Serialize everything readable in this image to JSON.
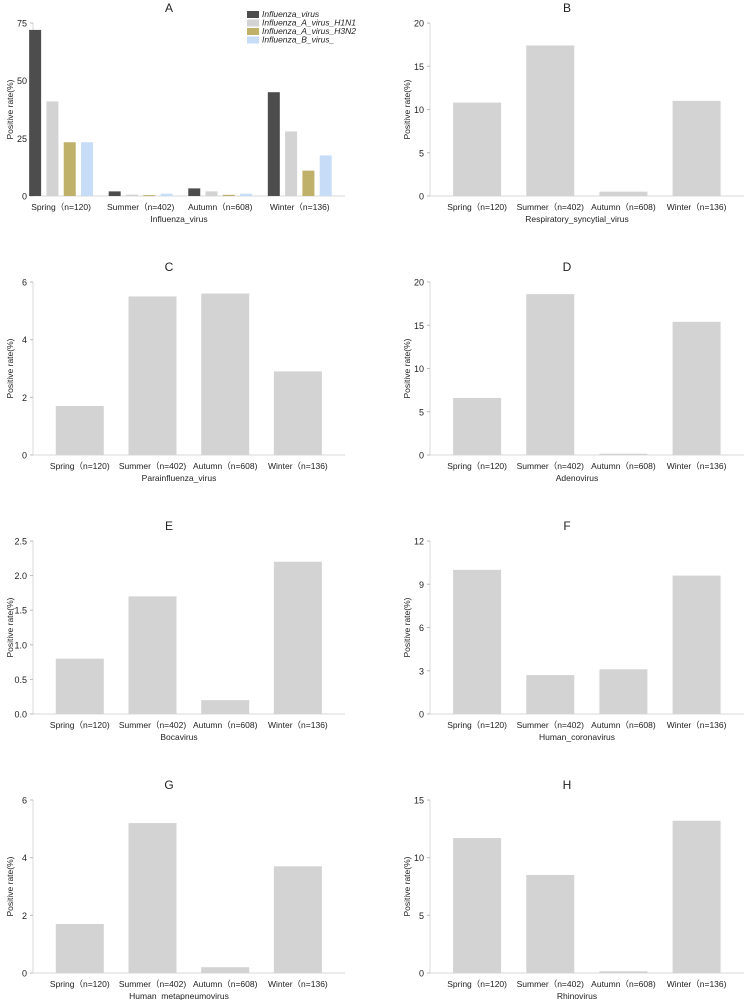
{
  "chart_data": [
    {
      "type": "bar",
      "title": "A",
      "xlabel": "Influenza_virus",
      "ylabel": "Positive rate(%)",
      "categories": [
        "Spring（n=120)",
        "Summer（n=402)",
        "Autumn（n=608)",
        "Winter（n=136)"
      ],
      "ylim": [
        0,
        75
      ],
      "yticks": [
        0,
        25,
        50,
        75
      ],
      "legend": "top-right",
      "series": [
        {
          "name": "Influenza_virus",
          "color": "#4d4d4d",
          "values": [
            72,
            2,
            3.3,
            45
          ]
        },
        {
          "name": "Influenza_A_virus_H1N1",
          "color": "#d3d3d3",
          "values": [
            41,
            0.6,
            2,
            28
          ]
        },
        {
          "name": "Influenza_A_virus_H3N2",
          "color": "#bfb06a",
          "values": [
            23.3,
            0.4,
            0.5,
            11
          ]
        },
        {
          "name": "Influenza_B_virus_",
          "color": "#c6dcf7",
          "values": [
            23.3,
            1,
            1,
            17.6
          ]
        }
      ]
    },
    {
      "type": "bar",
      "title": "B",
      "xlabel": "Respiratory_syncytial_virus",
      "ylabel": "Positive rate(%)",
      "categories": [
        "Spring（n=120)",
        "Summer（n=402)",
        "Autumn（n=608)",
        "Winter（n=136)"
      ],
      "ylim": [
        0,
        20
      ],
      "yticks": [
        0,
        5,
        10,
        15,
        20
      ],
      "series": [
        {
          "name": "Respiratory_syncytial_virus",
          "color": "#d3d3d3",
          "values": [
            10.8,
            17.4,
            0.5,
            11.0
          ]
        }
      ]
    },
    {
      "type": "bar",
      "title": "C",
      "xlabel": "Parainfluenza_virus",
      "ylabel": "Positive rate(%)",
      "categories": [
        "Spring（n=120)",
        "Summer（n=402)",
        "Autumn（n=608)",
        "Winter（n=136)"
      ],
      "ylim": [
        0,
        6
      ],
      "yticks": [
        0,
        2,
        4,
        6
      ],
      "series": [
        {
          "name": "Parainfluenza_virus",
          "color": "#d3d3d3",
          "values": [
            1.7,
            5.5,
            5.6,
            2.9
          ]
        }
      ]
    },
    {
      "type": "bar",
      "title": "D",
      "xlabel": "Adenovirus",
      "ylabel": "Positive rate(%)",
      "categories": [
        "Spring（n=120)",
        "Summer（n=402)",
        "Autumn（n=608)",
        "Winter（n=136)"
      ],
      "ylim": [
        0,
        20
      ],
      "yticks": [
        0,
        5,
        10,
        15,
        20
      ],
      "series": [
        {
          "name": "Adenovirus",
          "color": "#d3d3d3",
          "values": [
            6.6,
            18.6,
            0.15,
            15.4
          ]
        }
      ]
    },
    {
      "type": "bar",
      "title": "E",
      "xlabel": "Bocavirus",
      "ylabel": "Positive rate(%)",
      "categories": [
        "Spring（n=120)",
        "Summer（n=402)",
        "Autumn（n=608)",
        "Winter（n=136)"
      ],
      "ylim": [
        0,
        2.5
      ],
      "yticks": [
        "0.0",
        "0.5",
        "1.0",
        "1.5",
        "2.0",
        "2.5"
      ],
      "series": [
        {
          "name": "Bocavirus",
          "color": "#d3d3d3",
          "values": [
            0.8,
            1.7,
            0.2,
            2.2
          ]
        }
      ]
    },
    {
      "type": "bar",
      "title": "F",
      "xlabel": "Human_coronavirus",
      "ylabel": "Positive rate(%)",
      "categories": [
        "Spring（n=120)",
        "Summer（n=402)",
        "Autumn（n=608)",
        "Winter（n=136)"
      ],
      "ylim": [
        0,
        12
      ],
      "yticks": [
        0,
        3,
        6,
        9,
        12
      ],
      "series": [
        {
          "name": "Human_coronavirus",
          "color": "#d3d3d3",
          "values": [
            10.0,
            2.7,
            3.1,
            9.6
          ]
        }
      ]
    },
    {
      "type": "bar",
      "title": "G",
      "xlabel": "Human_metapneumovirus",
      "ylabel": "Positive rate(%)",
      "categories": [
        "Spring（n=120)",
        "Summer（n=402)",
        "Autumn（n=608)",
        "Winter（n=136)"
      ],
      "ylim": [
        0,
        6
      ],
      "yticks": [
        0,
        2,
        4,
        6
      ],
      "series": [
        {
          "name": "Human_metapneumovirus",
          "color": "#d3d3d3",
          "values": [
            1.7,
            5.2,
            0.2,
            3.7
          ]
        }
      ]
    },
    {
      "type": "bar",
      "title": "H",
      "xlabel": "Rhinovirus",
      "ylabel": "Positive rate(%)",
      "categories": [
        "Spring（n=120)",
        "Summer（n=402)",
        "Autumn（n=608)",
        "Winter（n=136)"
      ],
      "ylim": [
        0,
        15
      ],
      "yticks": [
        0,
        5,
        10,
        15
      ],
      "series": [
        {
          "name": "Rhinovirus",
          "color": "#d3d3d3",
          "values": [
            11.7,
            8.5,
            0.15,
            13.2
          ]
        }
      ]
    }
  ]
}
